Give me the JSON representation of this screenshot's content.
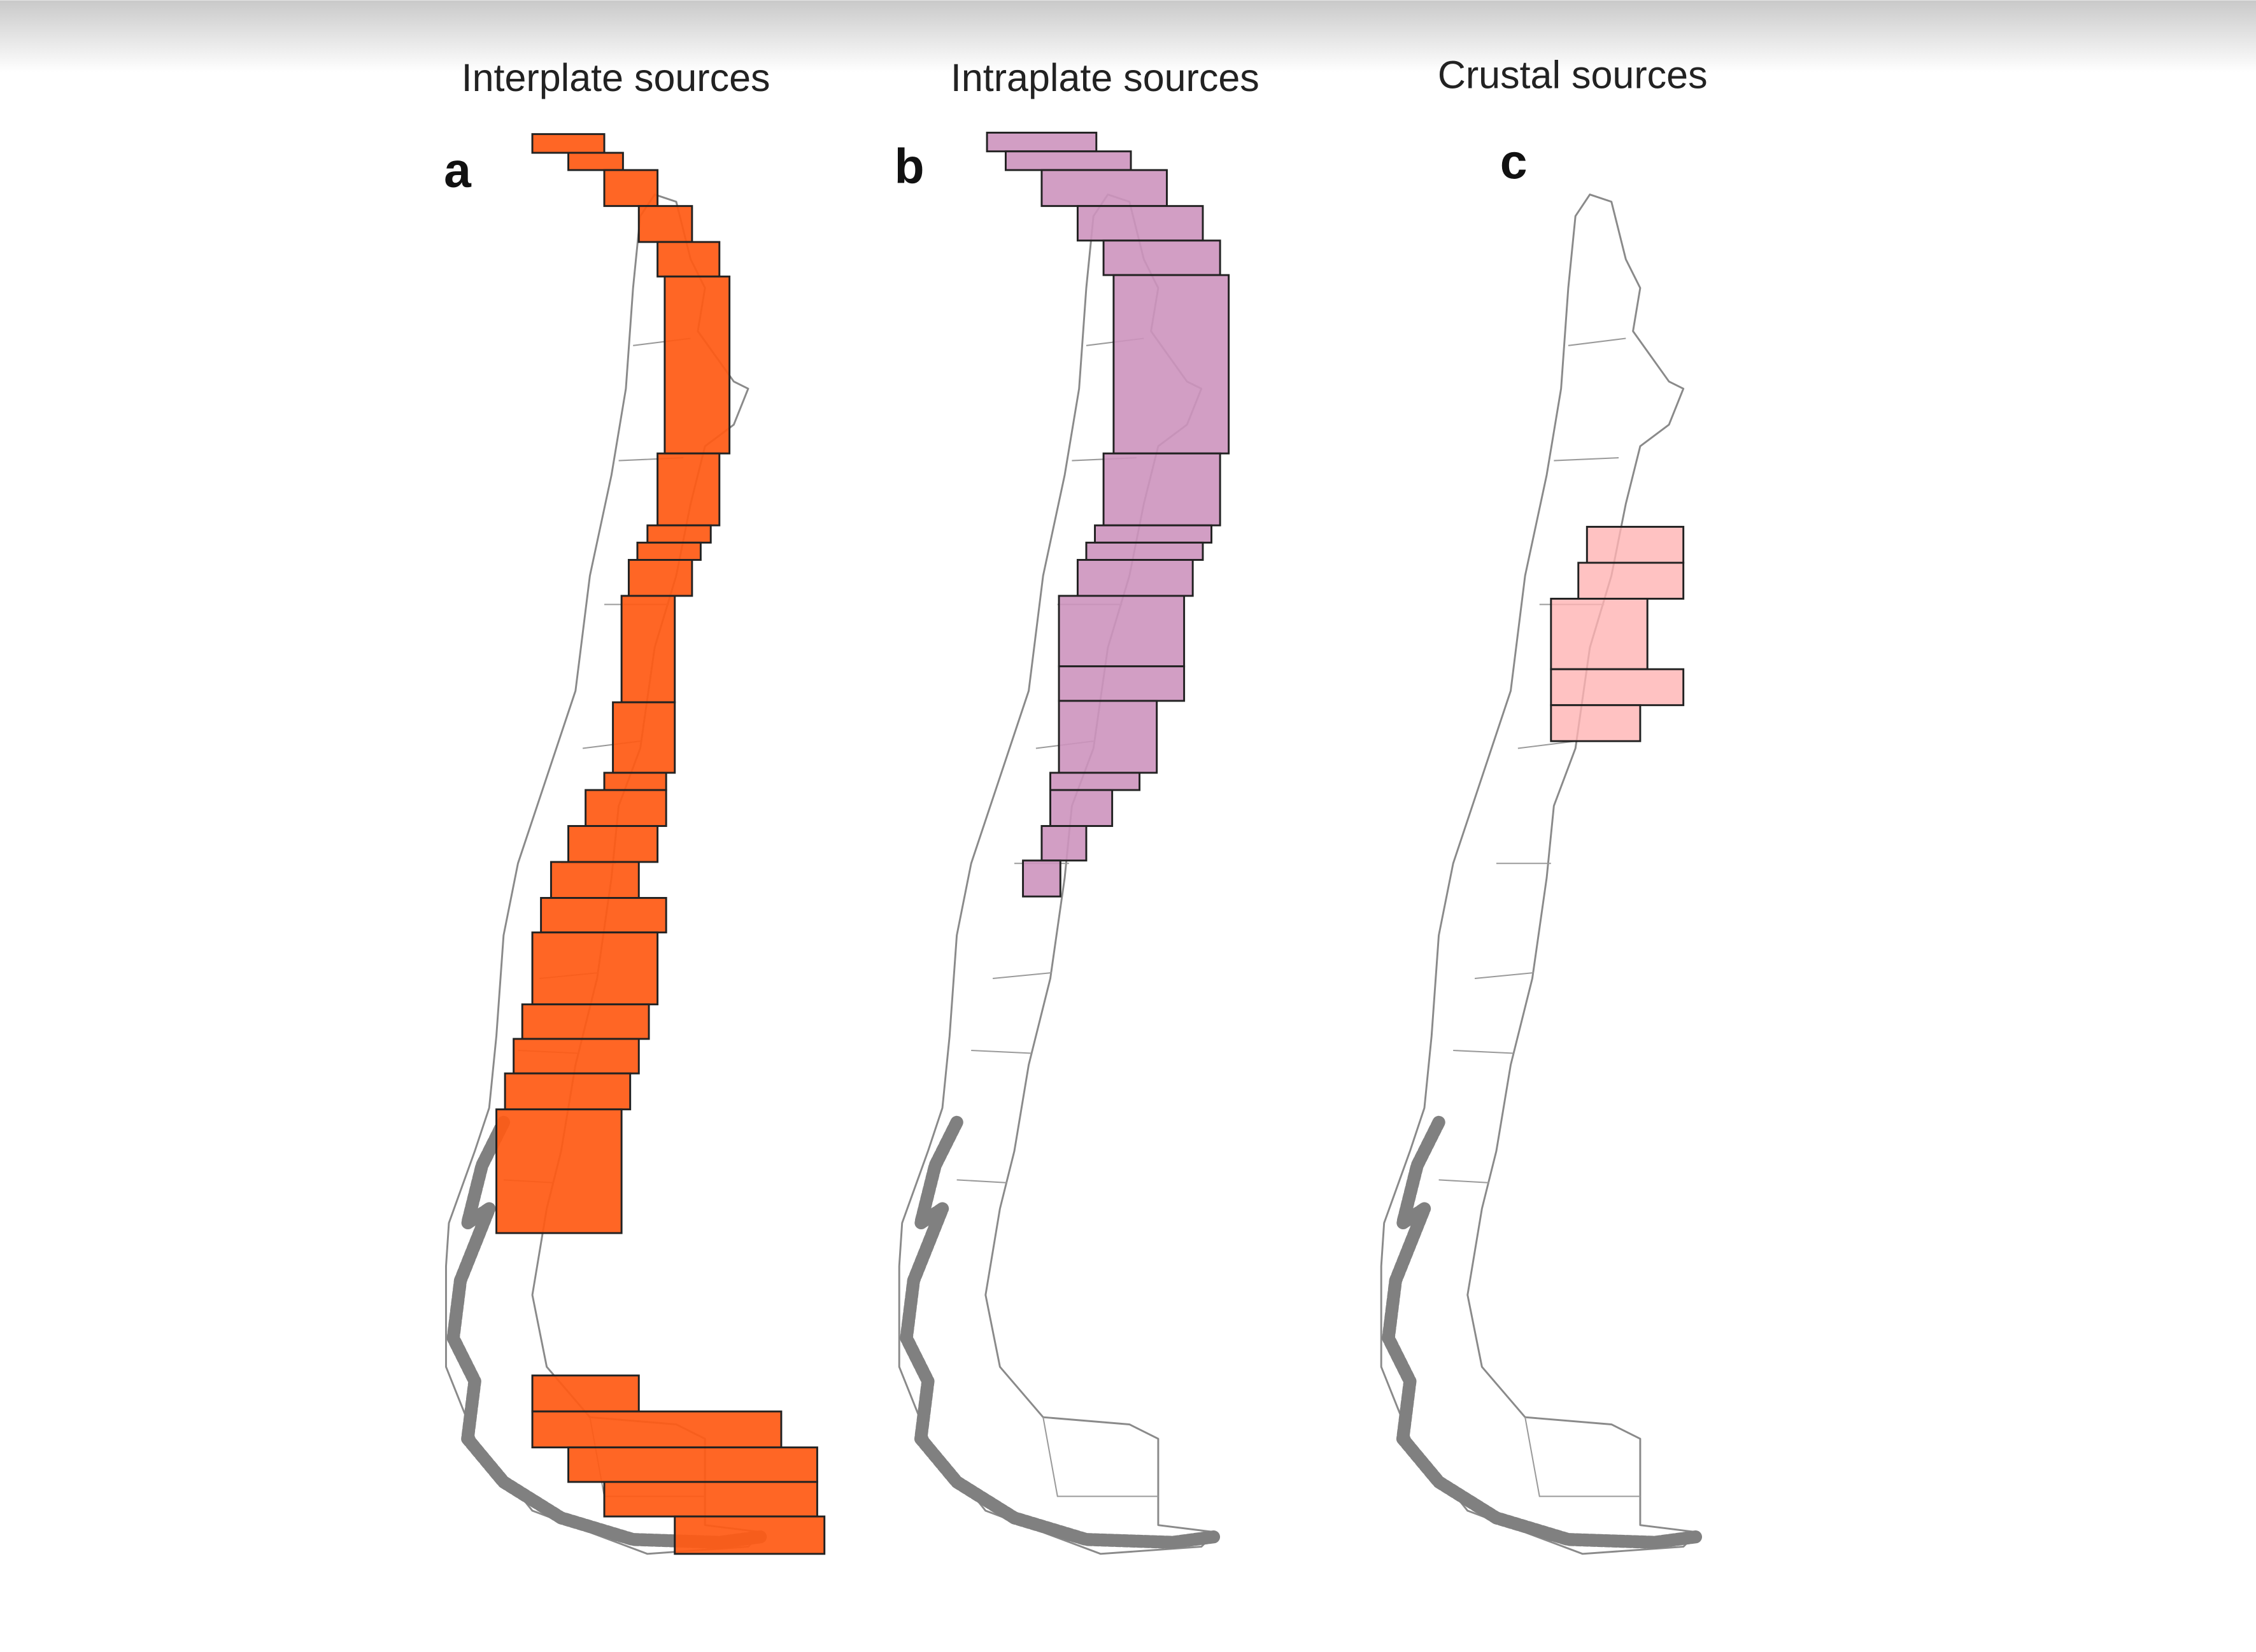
{
  "panels": [
    {
      "title": "Interplate sources",
      "label": "a"
    },
    {
      "title": "Intraplate sources",
      "label": "b"
    },
    {
      "title": "Crustal sources",
      "label": "c"
    }
  ]
}
